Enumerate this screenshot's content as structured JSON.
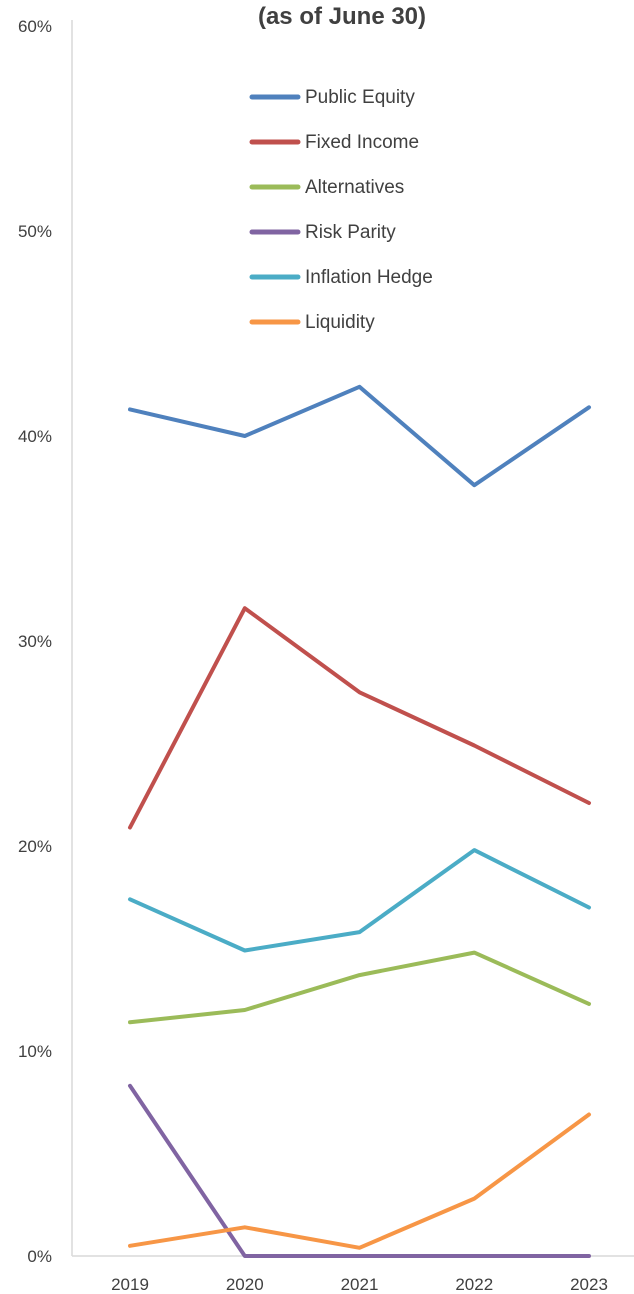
{
  "chart_data": {
    "type": "line",
    "title": "(as of June 30)",
    "xlabel": "",
    "ylabel": "",
    "categories": [
      "2019",
      "2020",
      "2021",
      "2022",
      "2023"
    ],
    "y_ticks": [
      "0%",
      "10%",
      "20%",
      "30%",
      "40%",
      "50%",
      "60%"
    ],
    "ylim": [
      0,
      60
    ],
    "grid": false,
    "legend_position": "top-center",
    "series": [
      {
        "name": "Public Equity",
        "color": "#4f81bd",
        "values": [
          41.3,
          40.0,
          42.4,
          37.6,
          41.4
        ]
      },
      {
        "name": "Fixed Income",
        "color": "#c0504d",
        "values": [
          20.9,
          31.6,
          27.5,
          24.9,
          22.1
        ]
      },
      {
        "name": "Alternatives",
        "color": "#9bbb59",
        "values": [
          11.4,
          12.0,
          13.7,
          14.8,
          12.3
        ]
      },
      {
        "name": "Risk Parity",
        "color": "#8064a2",
        "values": [
          8.3,
          0.0,
          0.0,
          0.0,
          0.0
        ]
      },
      {
        "name": "Inflation Hedge",
        "color": "#4bacc6",
        "values": [
          17.4,
          14.9,
          15.8,
          19.8,
          17.0
        ]
      },
      {
        "name": "Liquidity",
        "color": "#f79646",
        "values": [
          0.5,
          1.4,
          0.4,
          2.8,
          6.9
        ]
      }
    ]
  }
}
